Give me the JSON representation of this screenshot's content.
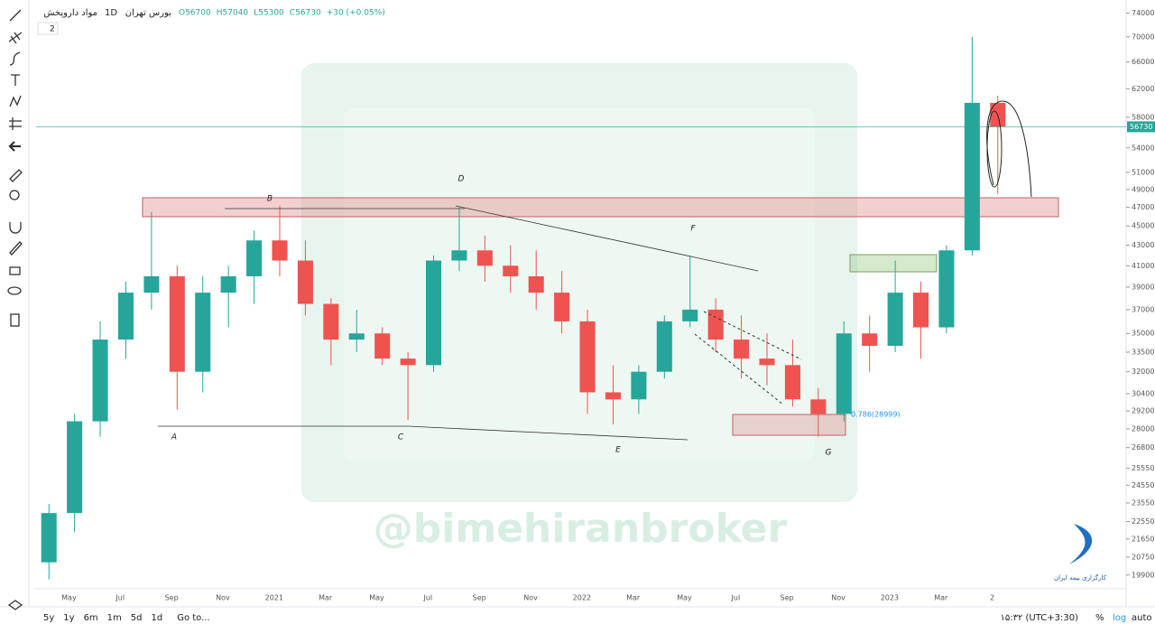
{
  "chart_data": {
    "type": "candlestick",
    "symbol": "مواد داروپخش",
    "interval": "1D",
    "exchange": "بورس تهران",
    "badge": "2",
    "legend_values": [
      "O56700",
      "H57040",
      "L55300",
      "C56730",
      "+30 (+0.05%)"
    ],
    "categories": [
      null,
      "May",
      null,
      "Jul",
      null,
      "Sep",
      null,
      "Nov",
      null,
      "2021",
      null,
      "Mar",
      null,
      "May",
      null,
      "Jul",
      null,
      "Sep",
      null,
      "Nov",
      null,
      "2022",
      null,
      "Mar",
      null,
      "May",
      null,
      "Jul",
      null,
      "Sep",
      null,
      "Nov",
      null,
      "2023",
      null,
      "Mar",
      null,
      "2"
    ],
    "open": [
      20500,
      23000,
      28500,
      34500,
      38500,
      40000,
      32000,
      38500,
      40000,
      43500,
      41500,
      37500,
      34500,
      35000,
      33000,
      32500,
      41500,
      42500,
      41000,
      40000,
      38500,
      36000,
      30500,
      30000,
      32000,
      36000,
      37000,
      34500,
      33000,
      32500,
      30000,
      29000,
      35000,
      34000,
      38500,
      35500,
      42500,
      60000
    ],
    "high": [
      23500,
      29000,
      36000,
      39500,
      46500,
      41000,
      40000,
      41000,
      44500,
      47200,
      43500,
      38000,
      37000,
      35500,
      33500,
      42000,
      47000,
      44000,
      43000,
      42500,
      40500,
      37000,
      32500,
      32500,
      36500,
      42000,
      38000,
      36500,
      35000,
      34500,
      30800,
      36000,
      36500,
      41500,
      39500,
      43000,
      70000,
      61000
    ],
    "low": [
      19700,
      22000,
      27500,
      33000,
      37000,
      29300,
      30500,
      35500,
      37500,
      40000,
      36500,
      32500,
      33500,
      32500,
      28600,
      32000,
      40500,
      39500,
      38500,
      37000,
      35000,
      29000,
      28300,
      29000,
      31500,
      35500,
      33500,
      31500,
      31000,
      29500,
      27500,
      28500,
      32000,
      33500,
      33000,
      35000,
      42000,
      48500
    ],
    "close": [
      23000,
      28500,
      34500,
      38500,
      40000,
      32000,
      38500,
      40000,
      43500,
      41500,
      37500,
      34500,
      35000,
      33000,
      32500,
      41500,
      42500,
      41000,
      40000,
      38500,
      36000,
      30500,
      30000,
      32000,
      36000,
      37000,
      34500,
      33000,
      32500,
      30000,
      29000,
      35000,
      34000,
      38500,
      35500,
      42500,
      60000,
      56730
    ],
    "up_color": "#26a69a",
    "down_color": "#ef5350",
    "last_price": 56730,
    "log_scale": true,
    "ylim": [
      19270,
      76300
    ],
    "yticks": [
      74000,
      70000,
      66000,
      62000,
      58000,
      54000,
      51000,
      49000,
      47000,
      45000,
      43000,
      41000,
      39000,
      37000,
      35000,
      33500,
      32000,
      30400,
      29200,
      28000,
      26800,
      25550,
      24550,
      23550,
      22550,
      21650,
      20750,
      19900
    ],
    "annotations": [
      "A",
      "B",
      "C",
      "D",
      "E",
      "F",
      "G",
      "0.786(28999)"
    ],
    "watermark": "@bimehiranbroker",
    "logo_text": "کارگزاری بیمه ایران"
  },
  "bottom_bar": {
    "ranges": [
      "5y",
      "1y",
      "6m",
      "1m",
      "5d",
      "1d"
    ],
    "goto": "Go to...",
    "clock": "۱۵:۳۲ (UTC+3:30)",
    "percent": "%",
    "log": "log",
    "auto": "auto"
  }
}
